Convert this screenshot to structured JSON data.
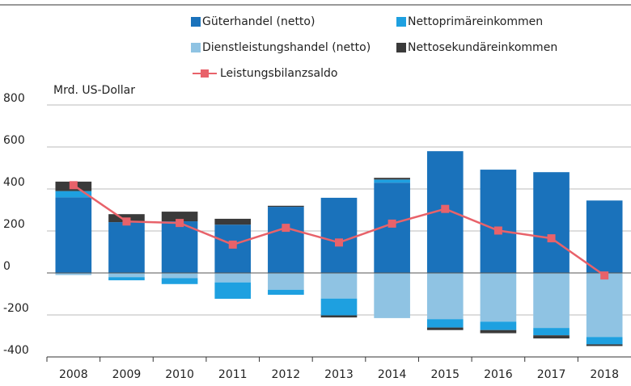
{
  "chart_data": {
    "type": "bar-line",
    "y_axis_label": "Mrd. US-Dollar",
    "categories": [
      "2008",
      "2009",
      "2010",
      "2011",
      "2012",
      "2013",
      "2014",
      "2015",
      "2016",
      "2017",
      "2018"
    ],
    "series": [
      {
        "name": "Güterhandel (netto)",
        "color": "#1a72bb",
        "values": [
          360,
          242,
          246,
          230,
          315,
          358,
          430,
          580,
          492,
          480,
          345
        ]
      },
      {
        "name": "Dienstleistungshandel (netto)",
        "color": "#8fc3e3",
        "values": [
          -10,
          -20,
          -25,
          -45,
          -80,
          -122,
          -215,
          -220,
          -232,
          -262,
          -305
        ]
      },
      {
        "name": "Nettoprimäreinkommen",
        "color": "#1ea0e0",
        "values": [
          30,
          -15,
          -28,
          -78,
          -24,
          -80,
          15,
          -40,
          -40,
          -35,
          -35
        ]
      },
      {
        "name": "Nettosekundäreinkommen",
        "color": "#3a3a3a",
        "values": [
          45,
          38,
          46,
          28,
          5,
          -10,
          8,
          -12,
          -15,
          -15,
          -8
        ]
      }
    ],
    "line": {
      "name": "Leistungsbilanzsaldo",
      "color": "#e8626a",
      "values": [
        418,
        245,
        238,
        135,
        215,
        145,
        235,
        305,
        202,
        165,
        -12
      ]
    },
    "ylim": [
      -400,
      800
    ],
    "yticks": [
      -400,
      -200,
      0,
      200,
      400,
      600,
      800
    ],
    "grid": true
  }
}
